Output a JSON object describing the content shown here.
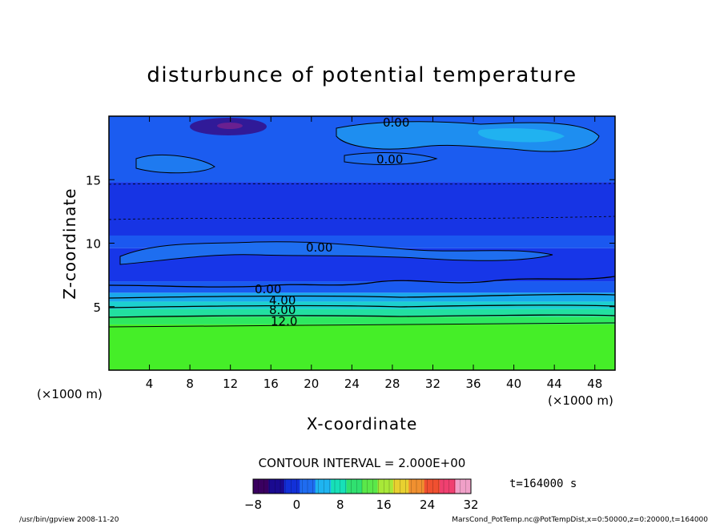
{
  "chart_data": {
    "type": "heatmap",
    "title": "disturbunce of potential temperature",
    "xlabel": "X-coordinate",
    "ylabel": "Z-coordinate",
    "x_unit": "(×1000 m)",
    "y_unit": "(×1000 m)",
    "xlim": [
      0,
      50
    ],
    "ylim": [
      0,
      20
    ],
    "x_ticks": [
      4,
      8,
      12,
      16,
      20,
      24,
      28,
      32,
      36,
      40,
      44,
      48
    ],
    "y_ticks": [
      5,
      10,
      15
    ],
    "contour_labels": [
      "0.00",
      "0.00",
      "0.00",
      "0.00",
      "4.00",
      "8.00",
      "12.0"
    ],
    "contour_interval_text": "CONTOUR INTERVAL = 2.000E+00",
    "colorbar": {
      "min": -8,
      "max": 32,
      "ticks": [
        -8,
        0,
        8,
        16,
        24,
        32
      ],
      "colors": [
        "#3a0060",
        "#1a0a90",
        "#1230d8",
        "#1f6cf0",
        "#1fb4f0",
        "#17e0b8",
        "#30e070",
        "#5ae84a",
        "#a8e838",
        "#e8d030",
        "#f09030",
        "#f05030",
        "#f04070",
        "#f0a0c8"
      ]
    },
    "time_text": "t=164000 s",
    "footer_left": "/usr/bin/gpview  2008-11-20",
    "footer_right": "MarsCond_PotTemp.nc@PotTempDist,x=0:50000,z=0:20000,t=164000",
    "layers": [
      {
        "z0": 0,
        "z1": 3.6,
        "value": 16,
        "color": "#45ee28"
      },
      {
        "z0": 3.6,
        "z1": 4.2,
        "value": 13,
        "color": "#2ee860"
      },
      {
        "z0": 4.2,
        "z1": 4.8,
        "value": 10,
        "color": "#22e0a0"
      },
      {
        "z0": 4.8,
        "z1": 5.4,
        "value": 7,
        "color": "#1cd0d0"
      },
      {
        "z0": 5.4,
        "z1": 6.1,
        "value": 3,
        "color": "#1aa8ec"
      },
      {
        "z0": 6.1,
        "z1": 7.0,
        "value": -1,
        "color": "#1a5af0"
      },
      {
        "z0": 7.0,
        "z1": 9.6,
        "value": -2,
        "color": "#1736e8"
      },
      {
        "z0": 9.6,
        "z1": 10.6,
        "value": -1,
        "color": "#1b58f0"
      },
      {
        "z0": 10.6,
        "z1": 14.8,
        "value": -2,
        "color": "#1734e4"
      },
      {
        "z0": 14.8,
        "z1": 20,
        "value": -1,
        "color": "#1b5cf0"
      }
    ]
  }
}
